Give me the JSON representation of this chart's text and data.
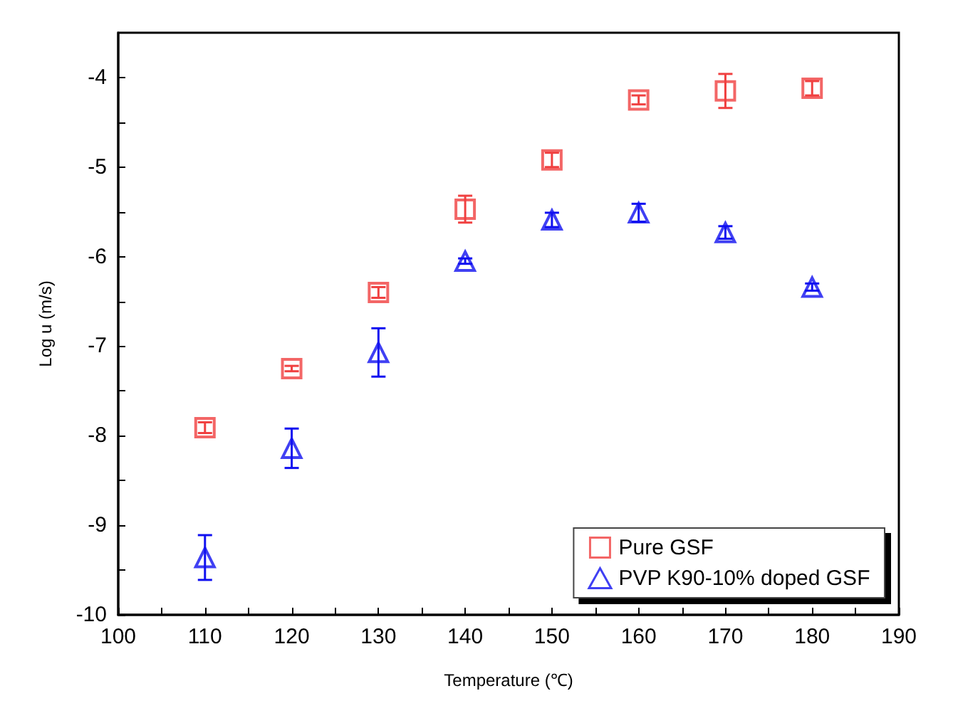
{
  "chart_data": {
    "type": "scatter",
    "xlabel": "Temperature (℃)",
    "ylabel": "Log u (m/s)",
    "x": [
      110,
      120,
      130,
      140,
      150,
      160,
      170,
      180
    ],
    "series": [
      {
        "name": "Pure GSF",
        "color": "#f04040",
        "marker": "square",
        "values": [
          -7.91,
          -7.25,
          -6.4,
          -5.47,
          -4.92,
          -4.25,
          -4.15,
          -4.12
        ],
        "errors": [
          0.06,
          0.03,
          0.06,
          0.15,
          0.08,
          0.05,
          0.19,
          0.08
        ]
      },
      {
        "name": "PVP K90-10% doped GSF",
        "color": "#1010f0",
        "marker": "triangle",
        "values": [
          -9.36,
          -8.14,
          -7.07,
          -6.05,
          -5.59,
          -5.51,
          -5.73,
          -6.34
        ],
        "errors": [
          0.25,
          0.22,
          0.27,
          0.03,
          0.08,
          0.1,
          0.07,
          0.04
        ]
      }
    ],
    "xlim": [
      100,
      190
    ],
    "xticks": [
      100,
      110,
      120,
      130,
      140,
      150,
      160,
      170,
      180,
      190
    ],
    "ylim": [
      -10,
      -3.5
    ],
    "yticks": [
      -10,
      -9,
      -8,
      -7,
      -6,
      -5,
      -4
    ],
    "grid": false,
    "legend": "bottom right"
  }
}
